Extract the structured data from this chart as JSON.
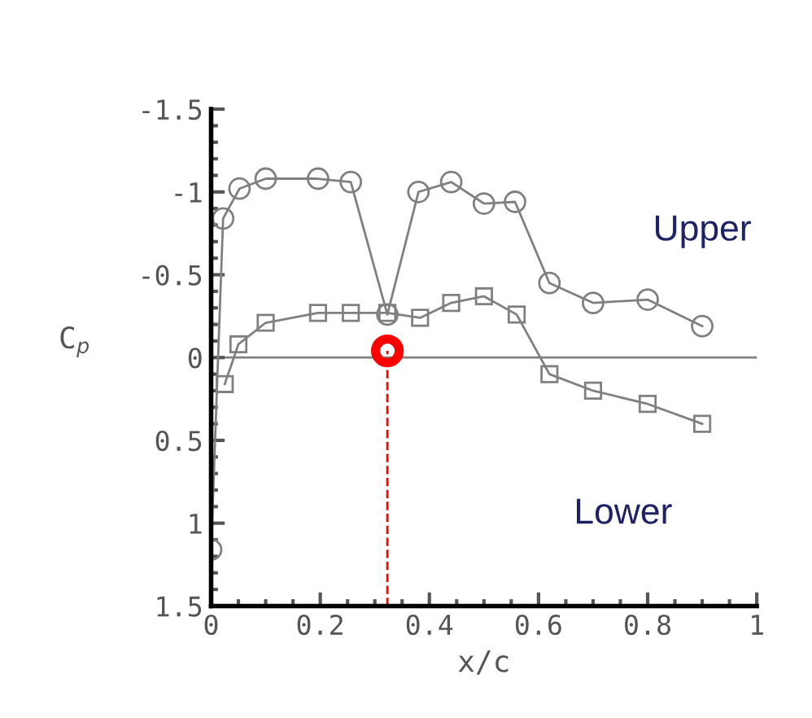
{
  "chart_data": {
    "type": "line",
    "xlabel": "x/c",
    "ylabel": "C$_{p}$",
    "xlim": [
      0,
      1
    ],
    "xticks": [
      0,
      0.2,
      0.4,
      0.6,
      0.8,
      1
    ],
    "ylim": [
      1.5,
      -1.5
    ],
    "yticks": [
      {
        "value": -1.5,
        "label": "-1.5"
      },
      {
        "value": -1,
        "label": "-1"
      },
      {
        "value": -0.5,
        "label": "-0.5"
      },
      0,
      0.5,
      1,
      1.5
    ],
    "grid": false,
    "legend": false,
    "series": [
      {
        "name": "Upper",
        "color": "#808080",
        "marker": "circle",
        "x": [
          0,
          0.022,
          0.052,
          0.1,
          0.196,
          0.256,
          0.323,
          0.38,
          0.44,
          0.5,
          0.557,
          0.62,
          0.7,
          0.8,
          0.9
        ],
        "values": [
          1.16,
          -0.84,
          -1.02,
          -1.08,
          -1.08,
          -1.06,
          -0.26,
          -1.0,
          -1.06,
          -0.93,
          -0.94,
          -0.45,
          -0.33,
          -0.35,
          -0.19
        ]
      },
      {
        "name": "Lower",
        "color": "#808080",
        "marker": "square",
        "x": [
          0.025,
          0.05,
          0.1,
          0.196,
          0.256,
          0.323,
          0.383,
          0.44,
          0.5,
          0.56,
          0.62,
          0.7,
          0.8,
          0.9
        ],
        "values": [
          0.16,
          -0.08,
          -0.21,
          -0.27,
          -0.27,
          -0.27,
          -0.24,
          -0.33,
          -0.37,
          -0.26,
          0.1,
          0.2,
          0.28,
          0.4
        ]
      },
      {
        "type": "scatter",
        "color": "#ff0000",
        "marker": "circle",
        "x": [
          0.323
        ],
        "values": [
          -0.04
        ]
      }
    ],
    "ref_lines": [
      {
        "axis": "y",
        "value": 0,
        "color": "#808080",
        "line_style": "solid"
      },
      {
        "axis": "x",
        "value": 0.323,
        "color": "#ff0000",
        "line_style": "dashed"
      }
    ]
  }
}
